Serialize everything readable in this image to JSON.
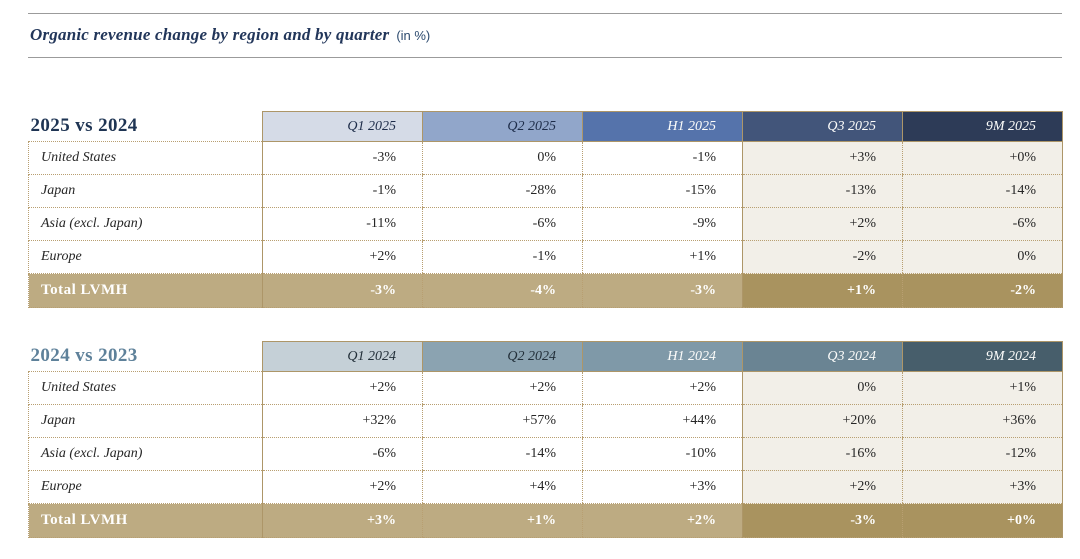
{
  "page": {
    "title": "Organic revenue change by region and by quarter",
    "title_suffix": "(in %)"
  },
  "colors": {
    "accent_tan_border": "#ad9668",
    "dotted_border": "#b89f71",
    "beige_column_bg": "#f2efe8",
    "total_row_light_tan": "#bdab82",
    "total_row_dark_tan": "#a9935f",
    "title_navy": "#22365a",
    "section_title_2025": "#1e3453",
    "section_title_2024": "#5e819a",
    "header_2025": [
      "#d5dbe7",
      "#91a6ca",
      "#5573ab",
      "#42557a",
      "#2d3b57"
    ],
    "header_2024": [
      "#c5d0d7",
      "#8ba3b1",
      "#7f99a8",
      "#6a8493",
      "#475e6b"
    ]
  },
  "tables": [
    {
      "title": "2025 vs 2024",
      "columns": [
        "Q1 2025",
        "Q2 2025",
        "H1 2025",
        "Q3 2025",
        "9M 2025"
      ],
      "rows": [
        {
          "label": "United States",
          "values": [
            "-3%",
            "0%",
            "-1%",
            "+3%",
            "+0%"
          ]
        },
        {
          "label": "Japan",
          "values": [
            "-1%",
            "-28%",
            "-15%",
            "-13%",
            "-14%"
          ]
        },
        {
          "label": "Asia (excl. Japan)",
          "values": [
            "-11%",
            "-6%",
            "-9%",
            "+2%",
            "-6%"
          ]
        },
        {
          "label": "Europe",
          "values": [
            "+2%",
            "-1%",
            "+1%",
            "-2%",
            "0%"
          ]
        }
      ],
      "total": {
        "label": "Total LVMH",
        "values": [
          "-3%",
          "-4%",
          "-3%",
          "+1%",
          "-2%"
        ]
      }
    },
    {
      "title": "2024 vs 2023",
      "columns": [
        "Q1 2024",
        "Q2 2024",
        "H1 2024",
        "Q3 2024",
        "9M 2024"
      ],
      "rows": [
        {
          "label": "United States",
          "values": [
            "+2%",
            "+2%",
            "+2%",
            "0%",
            "+1%"
          ]
        },
        {
          "label": "Japan",
          "values": [
            "+32%",
            "+57%",
            "+44%",
            "+20%",
            "+36%"
          ]
        },
        {
          "label": "Asia (excl. Japan)",
          "values": [
            "-6%",
            "-14%",
            "-10%",
            "-16%",
            "-12%"
          ]
        },
        {
          "label": "Europe",
          "values": [
            "+2%",
            "+4%",
            "+3%",
            "+2%",
            "+3%"
          ]
        }
      ],
      "total": {
        "label": "Total LVMH",
        "values": [
          "+3%",
          "+1%",
          "+2%",
          "-3%",
          "+0%"
        ]
      }
    }
  ]
}
